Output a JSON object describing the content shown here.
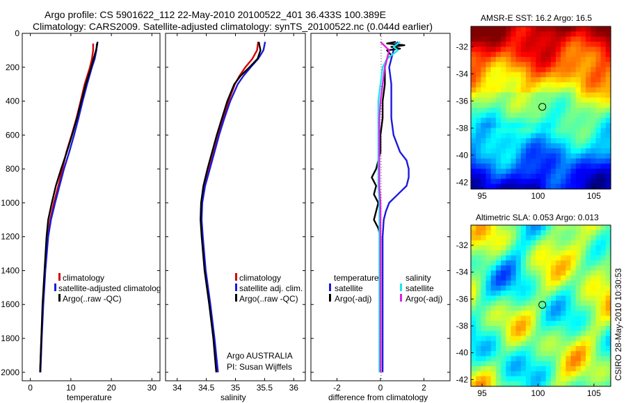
{
  "header": {
    "line1": "Argo profile: CS 5901622_112 22-May-2010 20100522_401 36.433S 100.389E",
    "line2": "Climatology: CARS2009. Satellite-adjusted climatology: synTS_20100522.nc (0.044d earlier)"
  },
  "colors": {
    "clim": "#d40000",
    "sat": "#1a1adc",
    "argo": "#000000",
    "cyan": "#1ee4ee",
    "magenta": "#e020e0"
  },
  "chart_data": [
    {
      "type": "line",
      "title": "",
      "xlabel": "temperature",
      "ylim": [
        2050,
        0
      ],
      "xlim": [
        -2,
        32
      ],
      "xticks": [
        0,
        10,
        20,
        30
      ],
      "yticks": [
        0,
        200,
        400,
        600,
        800,
        1000,
        1200,
        1400,
        1600,
        1800,
        2000
      ],
      "legend": [
        "climatology",
        "satellite-adjusted climatolog",
        "Argo(..raw -QC)"
      ],
      "series": [
        {
          "name": "climatology",
          "color": "clim",
          "depth": [
            60,
            100,
            150,
            200,
            300,
            400,
            500,
            600,
            700,
            800,
            900,
            1000,
            1100,
            1200,
            1400,
            1600,
            1800,
            2000
          ],
          "values": [
            15.5,
            15.5,
            15.2,
            14.7,
            13.4,
            12.4,
            11.4,
            10.2,
            8.9,
            7.9,
            6.9,
            5.8,
            4.9,
            4.3,
            3.6,
            3.1,
            2.7,
            2.4
          ]
        },
        {
          "name": "satellite",
          "color": "sat",
          "depth": [
            60,
            100,
            150,
            200,
            300,
            400,
            500,
            600,
            700,
            800,
            900,
            1000,
            1100,
            1200,
            1400,
            1600,
            1800,
            2000
          ],
          "values": [
            16.4,
            16.3,
            15.9,
            15.2,
            14.0,
            12.9,
            11.9,
            10.8,
            9.6,
            8.3,
            7.2,
            6.1,
            5.1,
            4.4,
            3.7,
            3.2,
            2.8,
            2.5
          ]
        },
        {
          "name": "argo",
          "color": "argo",
          "depth": [
            50,
            80,
            100,
            150,
            200,
            300,
            400,
            500,
            600,
            700,
            800,
            900,
            1000,
            1100,
            1200,
            1400,
            1600,
            1800,
            2000
          ],
          "values": [
            16.6,
            16.4,
            16.2,
            15.6,
            15.0,
            13.7,
            12.6,
            11.5,
            10.3,
            9.0,
            7.6,
            6.3,
            5.3,
            4.4,
            4.0,
            3.5,
            3.0,
            2.7,
            2.4
          ]
        }
      ]
    },
    {
      "type": "line",
      "title": "",
      "xlabel": "salinity",
      "ylim": [
        2050,
        0
      ],
      "xlim": [
        33.8,
        36.2
      ],
      "xticks": [
        34,
        34.5,
        35,
        35.5,
        36
      ],
      "legend": [
        "climatology",
        "satellite adj. clim.",
        "Argo(..raw -QC)"
      ],
      "annotation": [
        "Argo AUSTRALIA",
        "PI: Susan Wijffels"
      ],
      "series": [
        {
          "name": "climatology",
          "color": "clim",
          "depth": [
            50,
            100,
            150,
            200,
            250,
            300,
            400,
            500,
            600,
            700,
            800,
            900,
            1000,
            1100,
            1200,
            1400,
            1600,
            1800,
            2000
          ],
          "values": [
            35.39,
            35.37,
            35.29,
            35.17,
            35.07,
            34.99,
            34.88,
            34.79,
            34.71,
            34.63,
            34.55,
            34.47,
            34.42,
            34.41,
            34.43,
            34.48,
            34.56,
            34.63,
            34.68
          ]
        },
        {
          "name": "satellite",
          "color": "sat",
          "depth": [
            50,
            100,
            150,
            200,
            250,
            300,
            400,
            500,
            600,
            700,
            800,
            900,
            1000,
            1100,
            1200,
            1400,
            1600,
            1800,
            2000
          ],
          "values": [
            35.51,
            35.48,
            35.39,
            35.26,
            35.14,
            35.04,
            34.91,
            34.81,
            34.72,
            34.64,
            34.56,
            34.48,
            34.43,
            34.42,
            34.44,
            34.49,
            34.57,
            34.64,
            34.7
          ]
        },
        {
          "name": "argo",
          "color": "argo",
          "depth": [
            50,
            100,
            150,
            200,
            250,
            300,
            400,
            500,
            600,
            700,
            800,
            900,
            1000,
            1100,
            1200,
            1400,
            1600,
            1800,
            2000
          ],
          "values": [
            35.4,
            35.43,
            35.38,
            35.24,
            35.09,
            34.98,
            34.86,
            34.77,
            34.68,
            34.6,
            34.52,
            34.45,
            34.41,
            34.4,
            34.42,
            34.47,
            34.55,
            34.62,
            34.67
          ]
        }
      ]
    },
    {
      "type": "line",
      "title": "",
      "xlabel": "difference from climatology",
      "ylim": [
        2050,
        0
      ],
      "xlim": [
        -3.2,
        3.2
      ],
      "xticks": [
        -2,
        0,
        2
      ],
      "legend": {
        "left_title": "temperature",
        "right_title": "salinity",
        "items": [
          "satellite",
          "Argo(-adj)",
          "satellite",
          "Argo(-adj)"
        ]
      },
      "series": [
        {
          "name": "temp satellite",
          "color": "sat",
          "depth": [
            50,
            80,
            100,
            150,
            200,
            300,
            400,
            500,
            600,
            700,
            750,
            800,
            850,
            900,
            950,
            1000,
            1050,
            1100,
            1200,
            1400,
            1600,
            1800,
            2000
          ],
          "values": [
            0.8,
            0.6,
            0.6,
            0.5,
            0.4,
            0.5,
            0.5,
            0.5,
            0.6,
            0.9,
            1.2,
            1.3,
            1.3,
            1.2,
            0.8,
            0.4,
            0.25,
            0.15,
            0.1,
            0.1,
            0.1,
            0.1,
            0.1
          ]
        },
        {
          "name": "temp argo",
          "color": "argo",
          "depth": [
            50,
            60,
            70,
            80,
            90,
            100,
            130,
            150,
            200,
            300,
            400,
            500,
            600,
            700,
            800,
            850,
            900,
            950,
            1000,
            1100,
            1150,
            1200,
            1400,
            1600,
            1800,
            2000
          ],
          "values": [
            0.7,
            0.3,
            1.1,
            0.5,
            0.9,
            0.3,
            0.5,
            0.3,
            0.2,
            0.2,
            0.1,
            0.1,
            0.0,
            0.0,
            -0.2,
            -0.4,
            -0.2,
            -0.3,
            -0.1,
            -0.3,
            -0.1,
            0.0,
            0.0,
            0.0,
            0.0,
            0.0
          ]
        },
        {
          "name": "sal satellite",
          "color": "cyan",
          "depth": [
            50,
            80,
            100,
            150,
            200,
            300,
            400,
            500,
            600,
            700,
            800,
            900,
            1000,
            1200,
            1400,
            1600,
            1800,
            2000
          ],
          "values": [
            0.9,
            0.6,
            0.8,
            0.3,
            0.1,
            0.0,
            -0.1,
            -0.1,
            -0.1,
            -0.1,
            -0.1,
            -0.1,
            -0.05,
            -0.05,
            -0.05,
            -0.05,
            -0.05,
            -0.05
          ]
        },
        {
          "name": "sal argo",
          "color": "magenta",
          "depth": [
            50,
            100,
            150,
            200,
            300,
            400,
            500,
            600,
            700,
            800,
            900,
            1000,
            1200,
            1400,
            1600,
            1800,
            2000
          ],
          "values": [
            0.0,
            0.4,
            0.3,
            0.2,
            0.1,
            0.0,
            -0.05,
            -0.05,
            -0.05,
            -0.05,
            -0.05,
            0.0,
            0.0,
            0.0,
            0.0,
            0.0,
            0.0
          ]
        }
      ]
    },
    {
      "type": "heatmap",
      "title": "AMSR-E SST: 16.2 Argo: 16.5",
      "xticks": [
        95,
        100,
        105
      ],
      "yticks": [
        -32,
        -34,
        -36,
        -38,
        -40,
        -42
      ],
      "xlim": [
        94,
        106.5
      ],
      "ylim": [
        -42.5,
        -30.5
      ],
      "marker": {
        "lon": 100.389,
        "lat": -36.433
      },
      "colormap": "jet",
      "range": [
        11,
        20
      ]
    },
    {
      "type": "heatmap",
      "title": "Altimetric SLA: 0.053 Argo: 0.013",
      "xticks": [
        95,
        100,
        105
      ],
      "yticks": [
        -32,
        -34,
        -36,
        -38,
        -40,
        -42
      ],
      "xlim": [
        94,
        106.5
      ],
      "ylim": [
        -42.5,
        -30.5
      ],
      "marker": {
        "lon": 100.389,
        "lat": -36.433
      },
      "colormap": "jet",
      "range": [
        -0.3,
        0.3
      ]
    }
  ],
  "footer": {
    "side_label": "CSIRO 28-May-2010 10:30:53"
  }
}
